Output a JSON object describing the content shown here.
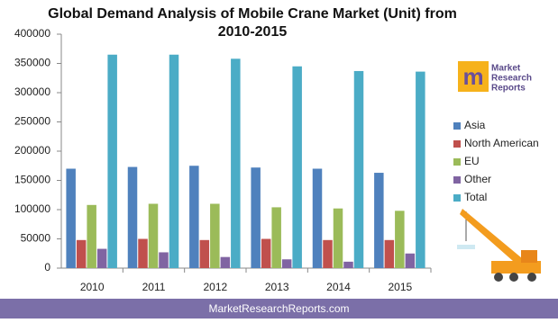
{
  "chart_data": {
    "type": "bar",
    "title": "Global Demand Analysis of Mobile Crane Market (Unit) from 2010-2015",
    "categories": [
      "2010",
      "2011",
      "2012",
      "2013",
      "2014",
      "2015"
    ],
    "series": [
      {
        "name": "Asia",
        "color": "#4f81bd",
        "values": [
          170000,
          173000,
          175000,
          172000,
          170000,
          163000
        ]
      },
      {
        "name": "North American",
        "color": "#c0504d",
        "values": [
          48000,
          50000,
          48000,
          50000,
          48000,
          48000
        ]
      },
      {
        "name": "EU",
        "color": "#9bbb59",
        "values": [
          108000,
          110000,
          110000,
          104000,
          102000,
          98000
        ]
      },
      {
        "name": "Other",
        "color": "#8064a2",
        "values": [
          33000,
          27000,
          19000,
          15000,
          11000,
          25000
        ]
      },
      {
        "name": "Total",
        "color": "#4bacc6",
        "values": [
          365000,
          365000,
          358000,
          345000,
          337000,
          336000
        ]
      }
    ],
    "ylim": [
      0,
      400000
    ],
    "yticks": [
      0,
      50000,
      100000,
      150000,
      200000,
      250000,
      300000,
      350000,
      400000
    ],
    "grid": false,
    "legend": "right"
  },
  "logo": {
    "line1": "Market",
    "line2": "Research",
    "line3": "Reports"
  },
  "footer": "MarketResearchReports.com"
}
